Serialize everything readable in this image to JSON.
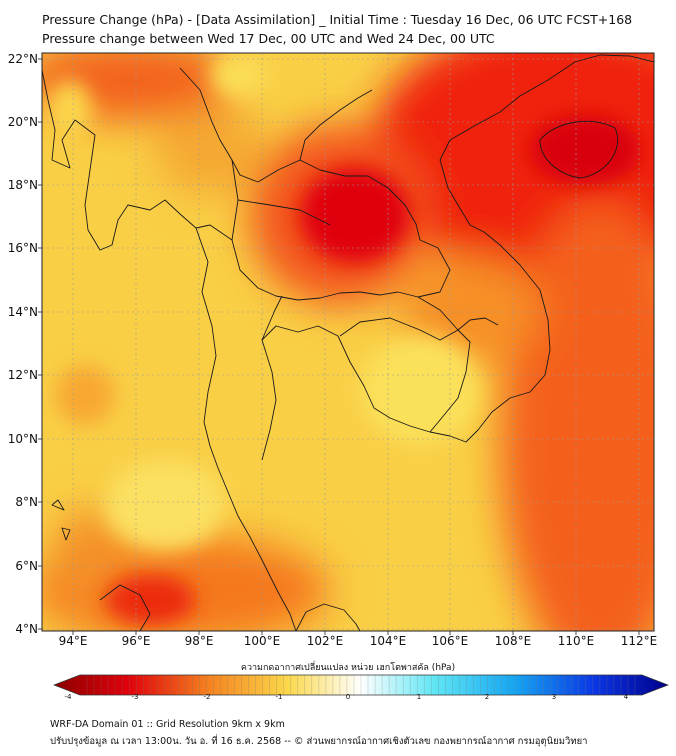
{
  "header": {
    "title_line1": "Pressure Change (hPa) - [Data Assimilation] _ Initial Time : Tuesday 16 Dec, 06 UTC FCST+168",
    "title_line2": "Pressure change between Wed 17 Dec, 00 UTC and Wed 24 Dec, 00 UTC"
  },
  "map": {
    "lat_ticks": [
      "22°N",
      "20°N",
      "18°N",
      "16°N",
      "14°N",
      "12°N",
      "10°N",
      "8°N",
      "6°N",
      "4°N"
    ],
    "lon_ticks": [
      "94°E",
      "96°E",
      "98°E",
      "100°E",
      "102°E",
      "104°E",
      "106°E",
      "108°E",
      "110°E",
      "112°E"
    ],
    "field_colors": {
      "deep_red": "#d8000a",
      "red": "#f01e0e",
      "orange": "#f6821a",
      "yellow_orange": "#f8c03a",
      "yellow": "#fae050",
      "border": "#1a1a1a"
    }
  },
  "colorbar": {
    "label": "ความกดอากาศเปลี่ยนแปลง หน่วย เฮกโตพาสคัล (hPa)",
    "ticks": [
      "-4",
      "-3",
      "-2",
      "-1",
      "0",
      "1",
      "2",
      "3",
      "4"
    ],
    "min": -4,
    "max": 4,
    "low_color": "#8b0000",
    "zero_color": "#ffffff",
    "high_color": "#00008b"
  },
  "footer": {
    "line1": "WRF-DA Domain 01 :: Grid Resolution 9km x 9km",
    "line2": "ปรับปรุงข้อมูล ณ เวลา 13:00น. วัน อ. ที่ 16 ธ.ค. 2568 -- © ส่วนพยากรณ์อากาศเชิงตัวเลข กองพยากรณ์อากาศ กรมอุตุนิยมวิทยา"
  }
}
